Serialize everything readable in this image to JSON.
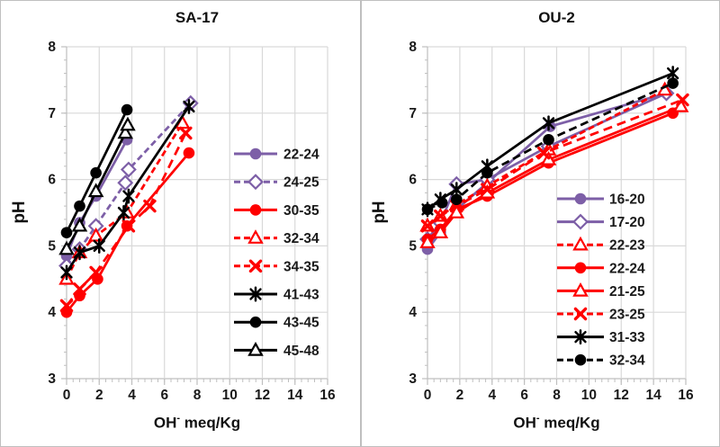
{
  "style": {
    "background": "#ffffff",
    "divider_color": "#bfbfbf",
    "grid_color": "#d9d9d9",
    "axis_color": "#bfbfbf",
    "text_color": "#1a1a1a",
    "purple": "#7D5FA7",
    "red": "#FF0000",
    "black": "#000000"
  },
  "chart_data": [
    {
      "type": "line",
      "title": "SA-17",
      "ylabel": "pH",
      "xlabel": "OH- meq/Kg",
      "xlabel_parts": [
        "OH",
        "-",
        " meq/Kg"
      ],
      "xlim": [
        0,
        16
      ],
      "ylim": [
        3,
        8
      ],
      "xticks": [
        0,
        2,
        4,
        6,
        8,
        10,
        12,
        14,
        16
      ],
      "yticks": [
        3,
        4,
        5,
        6,
        7,
        8
      ],
      "grid": true,
      "legend_position": "inside-right",
      "series": [
        {
          "name": "22-24",
          "color": "#7D5FA7",
          "marker": "circle",
          "dash": "solid",
          "points": [
            [
              0,
              4.85
            ],
            [
              0.8,
              5.35
            ],
            [
              1.8,
              5.75
            ],
            [
              3.7,
              6.6
            ]
          ]
        },
        {
          "name": "24-25",
          "color": "#7D5FA7",
          "marker": "diamond",
          "dash": "7,4",
          "points": [
            [
              0,
              4.7
            ],
            [
              0.8,
              4.95
            ],
            [
              1.8,
              5.3
            ],
            [
              3.6,
              5.95
            ],
            [
              3.8,
              6.15
            ],
            [
              7.6,
              7.15
            ]
          ]
        },
        {
          "name": "30-35",
          "color": "#FF0000",
          "marker": "circle",
          "dash": "solid",
          "points": [
            [
              0,
              4.0
            ],
            [
              0.8,
              4.25
            ],
            [
              1.9,
              4.5
            ],
            [
              3.7,
              5.3
            ],
            [
              7.5,
              6.4
            ]
          ]
        },
        {
          "name": "32-34",
          "color": "#FF0000",
          "marker": "triangle",
          "dash": "7,4",
          "points": [
            [
              0,
              4.5
            ],
            [
              0.8,
              4.9
            ],
            [
              1.8,
              5.15
            ],
            [
              3.7,
              5.5
            ],
            [
              7.1,
              6.85
            ]
          ]
        },
        {
          "name": "34-35",
          "color": "#FF0000",
          "marker": "x",
          "dash": "10,6",
          "points": [
            [
              0,
              4.1
            ],
            [
              0.8,
              4.35
            ],
            [
              1.8,
              4.6
            ],
            [
              3.8,
              5.3
            ],
            [
              5.1,
              5.6
            ],
            [
              7.3,
              6.7
            ]
          ]
        },
        {
          "name": "41-43",
          "color": "#000000",
          "marker": "asterisk",
          "dash": "solid",
          "points": [
            [
              0,
              4.6
            ],
            [
              0.8,
              4.9
            ],
            [
              2.0,
              5.0
            ],
            [
              3.5,
              5.5
            ],
            [
              3.8,
              5.75
            ],
            [
              7.5,
              7.1
            ]
          ]
        },
        {
          "name": "43-45",
          "color": "#000000",
          "marker": "circle",
          "dash": "solid",
          "points": [
            [
              0,
              5.2
            ],
            [
              0.8,
              5.6
            ],
            [
              1.8,
              6.1
            ],
            [
              3.7,
              7.05
            ]
          ]
        },
        {
          "name": "45-48",
          "color": "#000000",
          "marker": "triangle",
          "dash": "solid",
          "points": [
            [
              0,
              4.95
            ],
            [
              0.8,
              5.3
            ],
            [
              1.8,
              5.82
            ],
            [
              3.6,
              6.7
            ],
            [
              3.75,
              6.82
            ]
          ]
        }
      ]
    },
    {
      "type": "line",
      "title": "OU-2",
      "ylabel": "pH",
      "xlabel": "OH- meq/Kg",
      "xlabel_parts": [
        "OH",
        "-",
        " meq/Kg"
      ],
      "xlim": [
        0,
        16
      ],
      "ylim": [
        3,
        8
      ],
      "xticks": [
        0,
        2,
        4,
        6,
        8,
        10,
        12,
        14,
        16
      ],
      "yticks": [
        3,
        4,
        5,
        6,
        7,
        8
      ],
      "grid": true,
      "legend_position": "inside-right",
      "series": [
        {
          "name": "16-20",
          "color": "#7D5FA7",
          "marker": "circle",
          "dash": "solid",
          "points": [
            [
              0,
              4.95
            ],
            [
              0.8,
              5.2
            ],
            [
              1.8,
              5.55
            ],
            [
              3.7,
              5.95
            ],
            [
              7.6,
              6.8
            ],
            [
              14.8,
              7.3
            ]
          ]
        },
        {
          "name": "17-20",
          "color": "#7D5FA7",
          "marker": "diamond",
          "dash": "solid",
          "points": [
            [
              0,
              5.1
            ],
            [
              0.8,
              5.35
            ],
            [
              1.8,
              5.93
            ],
            [
              3.7,
              6.0
            ],
            [
              7.5,
              6.5
            ],
            [
              14.8,
              7.3
            ]
          ]
        },
        {
          "name": "22-23",
          "color": "#FF0000",
          "marker": "triangle",
          "dash": "7,4",
          "points": [
            [
              0,
              5.3
            ],
            [
              0.8,
              5.45
            ],
            [
              1.8,
              5.62
            ],
            [
              3.7,
              5.9
            ],
            [
              7.5,
              6.45
            ],
            [
              14.7,
              7.35
            ]
          ]
        },
        {
          "name": "22-24",
          "color": "#FF0000",
          "marker": "circle",
          "dash": "solid",
          "points": [
            [
              0,
              5.1
            ],
            [
              0.8,
              5.25
            ],
            [
              1.8,
              5.55
            ],
            [
              3.7,
              5.75
            ],
            [
              7.5,
              6.25
            ],
            [
              15.2,
              7.0
            ]
          ]
        },
        {
          "name": "21-25",
          "color": "#FF0000",
          "marker": "triangle",
          "dash": "solid",
          "points": [
            [
              0,
              5.05
            ],
            [
              0.8,
              5.2
            ],
            [
              1.8,
              5.5
            ],
            [
              3.7,
              5.8
            ],
            [
              7.5,
              6.3
            ],
            [
              15.7,
              7.1
            ]
          ]
        },
        {
          "name": "23-25",
          "color": "#FF0000",
          "marker": "x",
          "dash": "10,6",
          "points": [
            [
              0,
              5.3
            ],
            [
              0.8,
              5.45
            ],
            [
              1.8,
              5.6
            ],
            [
              3.7,
              5.85
            ],
            [
              7.2,
              6.4
            ],
            [
              15.8,
              7.2
            ]
          ]
        },
        {
          "name": "31-33",
          "color": "#000000",
          "marker": "asterisk",
          "dash": "solid",
          "points": [
            [
              0,
              5.55
            ],
            [
              0.8,
              5.7
            ],
            [
              1.8,
              5.85
            ],
            [
              3.7,
              6.2
            ],
            [
              7.5,
              6.85
            ],
            [
              15.2,
              7.6
            ]
          ]
        },
        {
          "name": "32-34",
          "color": "#000000",
          "marker": "circle",
          "dash": "9,5",
          "points": [
            [
              0,
              5.55
            ],
            [
              0.9,
              5.65
            ],
            [
              1.8,
              5.7
            ],
            [
              3.7,
              6.1
            ],
            [
              7.5,
              6.6
            ],
            [
              15.2,
              7.45
            ]
          ]
        }
      ]
    }
  ]
}
